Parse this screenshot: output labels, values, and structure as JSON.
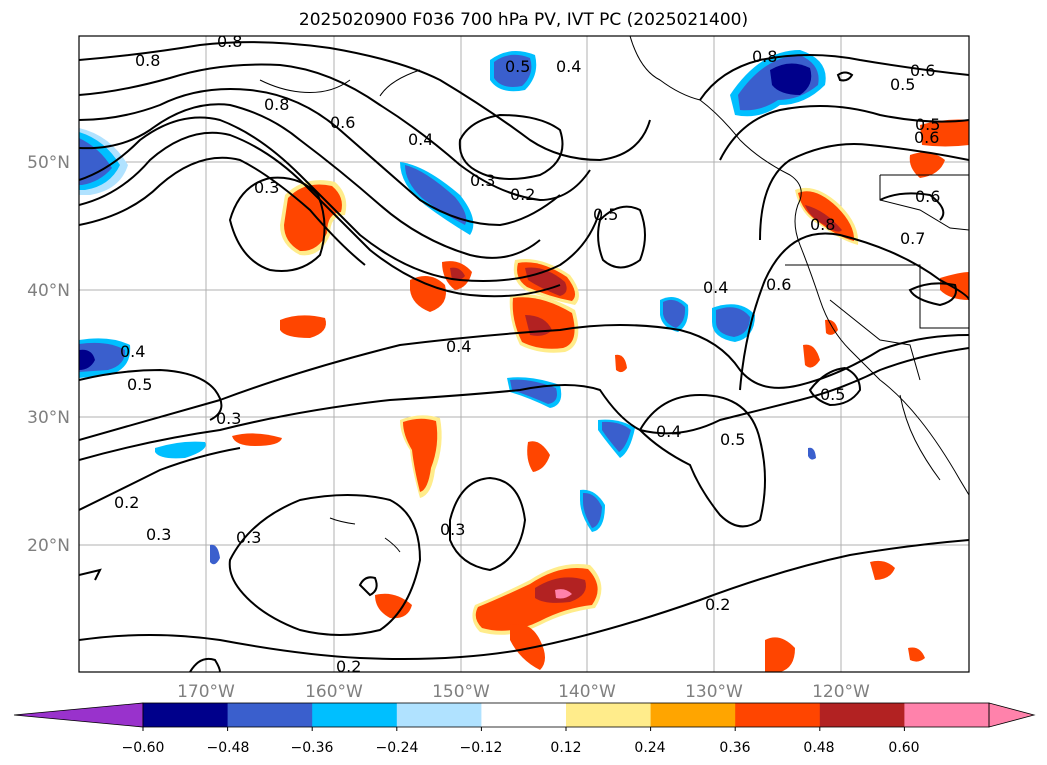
{
  "title": "2025020900 F036 700 hPa PV, IVT PC (2025021400)",
  "map": {
    "lon_labels": [
      "170°W",
      "160°W",
      "150°W",
      "140°W",
      "130°W",
      "120°W"
    ],
    "lat_labels": [
      "50°N",
      "40°N",
      "30°N",
      "20°N"
    ],
    "grid": true,
    "contour_color": "#000000",
    "contour_labels": [
      "0.8",
      "0.8",
      "0.5",
      "0.4",
      "0.8",
      "0.6",
      "0.8",
      "0.6",
      "0.4",
      "0.3",
      "0.2",
      "0.3",
      "0.5",
      "0.6",
      "0.7",
      "0.6",
      "0.4",
      "0.4",
      "0.5",
      "0.3",
      "0.5",
      "0.4",
      "0.3",
      "0.2",
      "0.3",
      "0.3",
      "0.4",
      "0.5",
      "0.2",
      "0.2",
      "0.6",
      "0.5",
      "0.5",
      "0.8"
    ]
  },
  "colorbar": {
    "tick_labels": [
      "−0.60",
      "−0.48",
      "−0.36",
      "−0.24",
      "−0.12",
      "0.12",
      "0.24",
      "0.36",
      "0.48",
      "0.60"
    ],
    "colors": [
      "#9932cc",
      "#00008b",
      "#3a5fcd",
      "#00bfff",
      "#b0e2ff",
      "#ffffff",
      "#ffec8b",
      "#ffa500",
      "#ff4500",
      "#b22222",
      "#ff82ab",
      "#ff82ab"
    ],
    "extend": "both"
  }
}
